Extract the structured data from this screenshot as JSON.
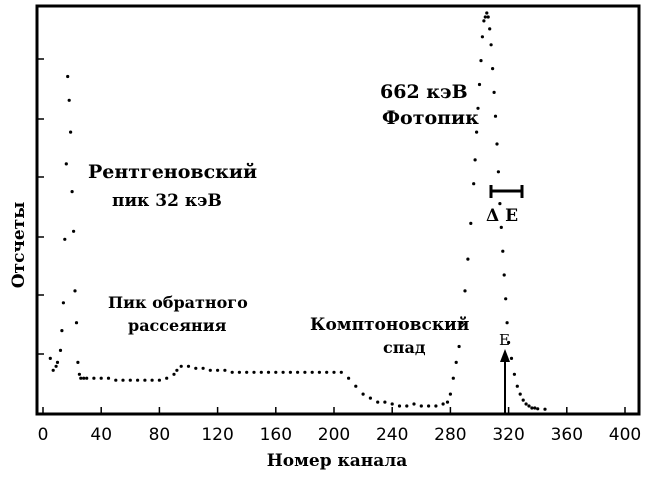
{
  "chart_data": {
    "type": "scatter",
    "title": "",
    "xlabel": "Номер канала",
    "ylabel": "Отсчеты",
    "xlim": [
      -5,
      410
    ],
    "ylim": [
      0,
      100
    ],
    "x_ticks": [
      "0",
      "40",
      "80",
      "120",
      "160",
      "200",
      "240",
      "280",
      "320",
      "360",
      "400"
    ],
    "x_tick_values": [
      0,
      40,
      80,
      120,
      160,
      200,
      240,
      280,
      320,
      360,
      400
    ],
    "grid": false,
    "series": [
      {
        "name": "",
        "x": [
          5,
          7,
          9,
          10,
          12,
          13,
          14,
          15,
          16,
          17,
          18,
          19,
          20,
          21,
          22,
          23,
          24,
          25,
          26,
          28,
          30,
          35,
          40,
          45,
          50,
          55,
          60,
          65,
          70,
          75,
          80,
          85,
          90,
          92,
          95,
          100,
          105,
          110,
          115,
          120,
          125,
          130,
          135,
          140,
          145,
          150,
          155,
          160,
          165,
          170,
          175,
          180,
          185,
          190,
          195,
          200,
          205,
          210,
          215,
          220,
          225,
          230,
          235,
          240,
          245,
          250,
          255,
          260,
          265,
          270,
          275,
          278,
          280,
          282,
          284,
          286,
          288,
          290,
          292,
          294,
          296,
          297,
          298,
          299,
          300,
          301,
          302,
          303,
          304,
          305,
          306,
          307,
          308,
          309,
          310,
          311,
          312,
          313,
          314,
          315,
          316,
          317,
          318,
          319,
          320,
          322,
          324,
          326,
          328,
          330,
          332,
          334,
          336,
          338,
          340,
          345
        ],
        "y": [
          13,
          10,
          11,
          12,
          15,
          20,
          27,
          43,
          62,
          84,
          78,
          70,
          55,
          45,
          30,
          22,
          12,
          9,
          8,
          8,
          8,
          8,
          8,
          8,
          7.5,
          7.5,
          7.5,
          7.5,
          7.5,
          7.5,
          7.5,
          8,
          9,
          10,
          11,
          11,
          10.5,
          10.5,
          10,
          10,
          10,
          9.5,
          9.5,
          9.5,
          9.5,
          9.5,
          9.5,
          9.5,
          9.5,
          9.5,
          9.5,
          9.5,
          9.5,
          9.5,
          9.5,
          9.5,
          9.5,
          8,
          6,
          4,
          3,
          2,
          2,
          1.5,
          1,
          1,
          1.5,
          1,
          1,
          1,
          1.5,
          2,
          4,
          8,
          12,
          16,
          22,
          30,
          38,
          47,
          57,
          63,
          70,
          76,
          82,
          88,
          94,
          98,
          99,
          100,
          99,
          96,
          92,
          86,
          80,
          74,
          67,
          60,
          52,
          46,
          40,
          34,
          28,
          22,
          17,
          13,
          9,
          6,
          4,
          2.5,
          1.5,
          1,
          0.5,
          0.5,
          0.3,
          0.2
        ]
      }
    ],
    "annotations": [
      {
        "text": "Рентгеновский",
        "line": 1
      },
      {
        "text": "пик 32 кэВ",
        "line": 2
      },
      {
        "text": "Пик обратного",
        "line": 1
      },
      {
        "text": "рассеяния",
        "line": 2
      },
      {
        "text": "Комптоновский",
        "line": 1
      },
      {
        "text": "спад",
        "line": 2
      },
      {
        "text": "662 кэВ",
        "line": 1
      },
      {
        "text": "Фотопик",
        "line": 2
      },
      {
        "text": "Δ E"
      },
      {
        "text": "E"
      }
    ]
  }
}
